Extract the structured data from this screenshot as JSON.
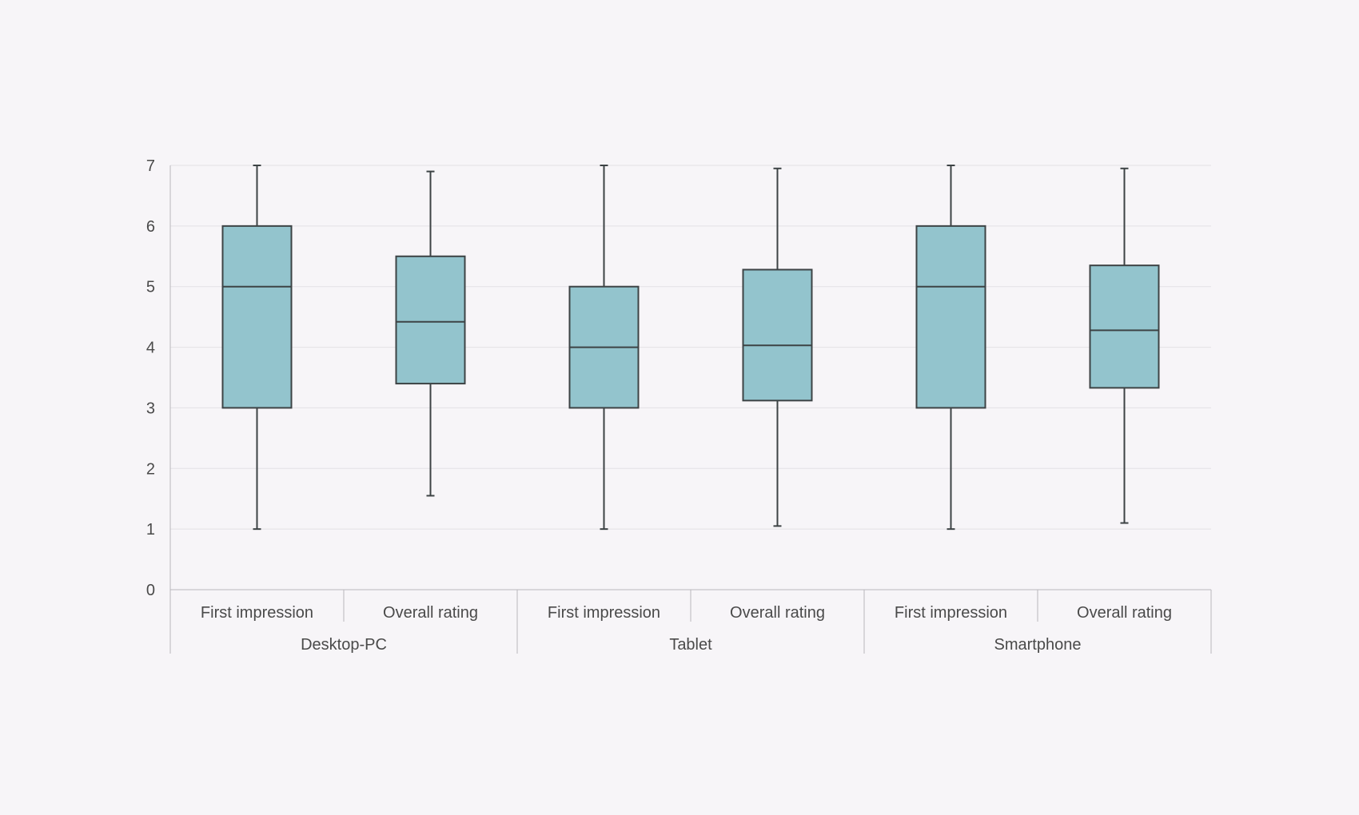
{
  "chart_data": {
    "type": "box",
    "ylim": [
      0,
      7
    ],
    "yticks": [
      0,
      1,
      2,
      3,
      4,
      5,
      6,
      7
    ],
    "grid": true,
    "groups": [
      {
        "name": "Desktop-PC",
        "boxes": [
          {
            "label": "First impression",
            "min": 1,
            "q1": 3,
            "median": 5,
            "q3": 6,
            "max": 7
          },
          {
            "label": "Overall rating",
            "min": 1.55,
            "q1": 3.4,
            "median": 4.42,
            "q3": 5.5,
            "max": 6.9
          }
        ]
      },
      {
        "name": "Tablet",
        "boxes": [
          {
            "label": "First impression",
            "min": 1,
            "q1": 3,
            "median": 4,
            "q3": 5,
            "max": 7
          },
          {
            "label": "Overall rating",
            "min": 1.05,
            "q1": 3.12,
            "median": 4.03,
            "q3": 5.28,
            "max": 6.95
          }
        ]
      },
      {
        "name": "Smartphone",
        "boxes": [
          {
            "label": "First impression",
            "min": 1,
            "q1": 3,
            "median": 5,
            "q3": 6,
            "max": 7
          },
          {
            "label": "Overall rating",
            "min": 1.1,
            "q1": 3.33,
            "median": 4.28,
            "q3": 5.35,
            "max": 6.95
          }
        ]
      }
    ],
    "colors": {
      "box_fill": "#93c4cd",
      "box_stroke": "#3d4345",
      "grid": "#e3e1e5",
      "axis": "#b9b7bb",
      "text": "#4a4a4a"
    }
  }
}
